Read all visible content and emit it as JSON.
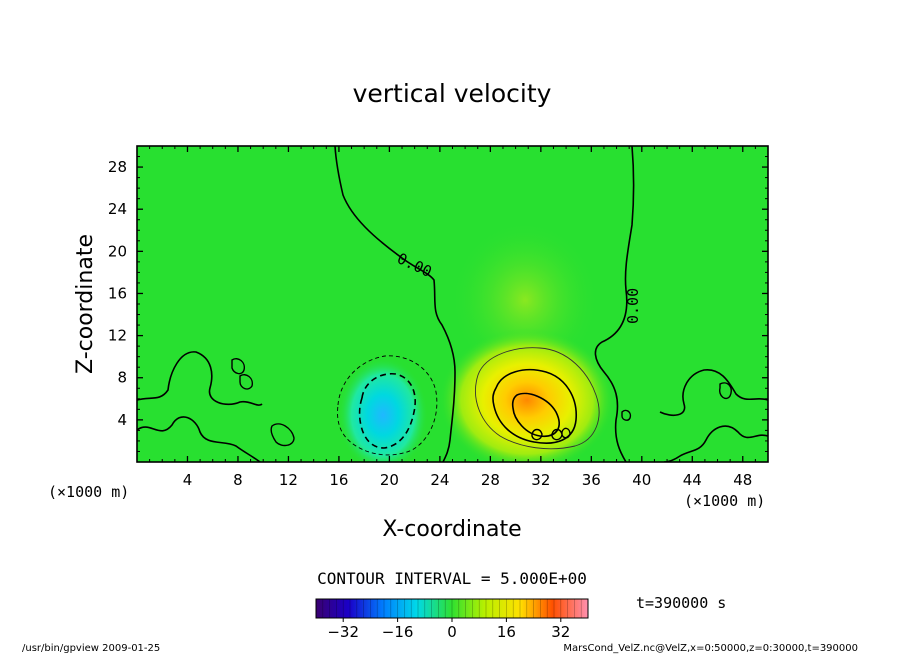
{
  "chart_data": {
    "type": "heatmap",
    "title": "vertical velocity",
    "xlabel": "X-coordinate",
    "ylabel": "Z-coordinate",
    "x_unit_label": "(×1000 m)",
    "y_unit_label": "(×1000 m)",
    "xlim": [
      0,
      50
    ],
    "ylim": [
      0,
      30
    ],
    "x_ticks": [
      4,
      8,
      12,
      16,
      20,
      24,
      28,
      32,
      36,
      40,
      44,
      48
    ],
    "y_ticks": [
      4,
      8,
      12,
      16,
      20,
      24,
      28
    ],
    "contour_interval_text": "CONTOUR INTERVAL = 5.000E+00",
    "contour_label": "0.00",
    "time_label": "t=390000 s",
    "colorbar": {
      "range": [
        -40,
        40
      ],
      "ticks": [
        -32,
        -16,
        0,
        16,
        32
      ],
      "colormap": "rainbow"
    },
    "features": [
      {
        "name": "downdraft",
        "x": 19.5,
        "z": 5,
        "peak": -15
      },
      {
        "name": "updraft",
        "x": 32,
        "z": 5,
        "peak": 25
      }
    ]
  },
  "footer": {
    "left": "/usr/bin/gpview   2009-01-25",
    "right": "MarsCond_VelZ.nc@VelZ,x=0:50000,z=0:30000,t=390000"
  }
}
